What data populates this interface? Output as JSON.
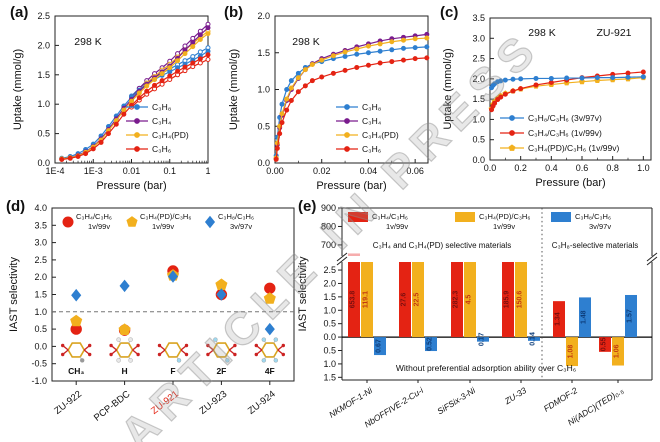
{
  "figure": {
    "watermark": "ARTICLE IN PRESS"
  },
  "colors": {
    "blue": "#2E7FD0",
    "purple": "#7A1C8E",
    "gold": "#F2B01E",
    "red": "#E42313",
    "pink": "#F6ADAD",
    "axis": "#222222",
    "highlight": "#E42313"
  },
  "panels": [
    {
      "tag": "(a)"
    },
    {
      "tag": "(b)"
    },
    {
      "tag": "(c)"
    },
    {
      "tag": "(d)"
    },
    {
      "tag": "(e)"
    }
  ],
  "chart_data": [
    {
      "id": "a",
      "type": "line",
      "xscale": "log",
      "title": "",
      "xlabel": "Pressure (bar)",
      "ylabel": "Uptake (mmol/g)",
      "xlim": [
        0.0001,
        1
      ],
      "ylim": [
        0,
        2.5
      ],
      "xticks": [
        {
          "v": 0.0001,
          "l": "1E-4"
        },
        {
          "v": 0.001,
          "l": "1E-3"
        },
        {
          "v": 0.01,
          "l": "0.01"
        },
        {
          "v": 0.1,
          "l": "0.1"
        },
        {
          "v": 1,
          "l": "1"
        }
      ],
      "yticks": [
        0,
        0.5,
        1,
        1.5,
        2,
        2.5
      ],
      "ydec": 1,
      "annotations": [
        "298 K"
      ],
      "series": [
        {
          "name": "C₃H₈ des",
          "legend": false,
          "color": "blue",
          "marker": "circle",
          "open": true,
          "x": [
            0.01,
            0.016,
            0.025,
            0.04,
            0.063,
            0.1,
            0.16,
            0.25,
            0.4,
            0.63,
            1.0
          ],
          "y": [
            1.14,
            1.27,
            1.37,
            1.46,
            1.53,
            1.6,
            1.67,
            1.74,
            1.81,
            1.89,
            1.96
          ]
        },
        {
          "name": "C₃H₄ des",
          "legend": false,
          "color": "purple",
          "marker": "circle",
          "open": true,
          "x": [
            0.01,
            0.016,
            0.025,
            0.04,
            0.063,
            0.1,
            0.16,
            0.25,
            0.4,
            0.63,
            1.0
          ],
          "y": [
            1.12,
            1.27,
            1.4,
            1.52,
            1.62,
            1.73,
            1.86,
            1.99,
            2.12,
            2.24,
            2.36
          ]
        },
        {
          "name": "C₃H₄(PD) des",
          "legend": false,
          "color": "gold",
          "marker": "circle",
          "open": true,
          "x": [
            0.01,
            0.016,
            0.025,
            0.04,
            0.063,
            0.1,
            0.16,
            0.25,
            0.4,
            0.63,
            1.0
          ],
          "y": [
            1.08,
            1.23,
            1.36,
            1.47,
            1.58,
            1.68,
            1.8,
            1.92,
            2.03,
            2.14,
            2.24
          ]
        },
        {
          "name": "C₃H₆ des",
          "legend": false,
          "color": "red",
          "marker": "circle",
          "open": true,
          "x": [
            0.01,
            0.016,
            0.025,
            0.04,
            0.063,
            0.1,
            0.16,
            0.25,
            0.4,
            0.63,
            1.0
          ],
          "y": [
            0.95,
            1.07,
            1.17,
            1.26,
            1.34,
            1.42,
            1.5,
            1.57,
            1.64,
            1.7,
            1.76
          ]
        },
        {
          "name": "C₃H₈",
          "color": "blue",
          "marker": "circle",
          "open": false,
          "x": [
            0.00015,
            0.00025,
            0.0004,
            0.00063,
            0.001,
            0.0016,
            0.0025,
            0.004,
            0.0063,
            0.01,
            0.016,
            0.025,
            0.04,
            0.063,
            0.1,
            0.16,
            0.25,
            0.4,
            0.63,
            1.0
          ],
          "y": [
            0.08,
            0.11,
            0.16,
            0.23,
            0.32,
            0.46,
            0.62,
            0.8,
            0.97,
            1.12,
            1.24,
            1.34,
            1.42,
            1.49,
            1.55,
            1.62,
            1.68,
            1.75,
            1.82,
            1.9
          ]
        },
        {
          "name": "C₃H₄",
          "color": "purple",
          "marker": "circle",
          "open": false,
          "x": [
            0.00015,
            0.00025,
            0.0004,
            0.00063,
            0.001,
            0.0016,
            0.0025,
            0.004,
            0.0063,
            0.01,
            0.016,
            0.025,
            0.04,
            0.063,
            0.1,
            0.16,
            0.25,
            0.4,
            0.63,
            1.0
          ],
          "y": [
            0.07,
            0.09,
            0.13,
            0.19,
            0.28,
            0.41,
            0.57,
            0.75,
            0.93,
            1.08,
            1.22,
            1.34,
            1.45,
            1.55,
            1.65,
            1.78,
            1.92,
            2.05,
            2.18,
            2.3
          ]
        },
        {
          "name": "C₃H₄(PD)",
          "color": "gold",
          "marker": "circle",
          "open": false,
          "x": [
            0.00015,
            0.00025,
            0.0004,
            0.00063,
            0.001,
            0.0016,
            0.0025,
            0.004,
            0.0063,
            0.01,
            0.016,
            0.025,
            0.04,
            0.063,
            0.1,
            0.16,
            0.25,
            0.4,
            0.63,
            1.0
          ],
          "y": [
            0.07,
            0.09,
            0.12,
            0.18,
            0.27,
            0.39,
            0.55,
            0.72,
            0.9,
            1.05,
            1.19,
            1.31,
            1.42,
            1.52,
            1.62,
            1.74,
            1.86,
            1.98,
            2.1,
            2.2
          ]
        },
        {
          "name": "C₃H₆",
          "color": "red",
          "marker": "circle",
          "open": false,
          "x": [
            0.00015,
            0.00025,
            0.0004,
            0.00063,
            0.001,
            0.0016,
            0.0025,
            0.004,
            0.0063,
            0.01,
            0.016,
            0.025,
            0.04,
            0.063,
            0.1,
            0.16,
            0.25,
            0.4,
            0.63,
            1.0
          ],
          "y": [
            0.06,
            0.08,
            0.11,
            0.16,
            0.24,
            0.35,
            0.5,
            0.66,
            0.83,
            0.98,
            1.11,
            1.22,
            1.32,
            1.4,
            1.48,
            1.56,
            1.63,
            1.7,
            1.77,
            1.84
          ]
        }
      ]
    },
    {
      "id": "b",
      "type": "line",
      "xscale": "linear",
      "xlabel": "Pressure (bar)",
      "ylabel": "Uptake (mmol/g)",
      "xlim": [
        0,
        0.0655
      ],
      "ylim": [
        0,
        2.0
      ],
      "xticks": [
        {
          "v": 0,
          "l": "0.00"
        },
        {
          "v": 0.02,
          "l": "0.02"
        },
        {
          "v": 0.04,
          "l": "0.04"
        },
        {
          "v": 0.06,
          "l": "0.06"
        }
      ],
      "xminor": [
        0.01,
        0.03,
        0.05
      ],
      "yticks": [
        0,
        0.5,
        1,
        1.5,
        2
      ],
      "ydec": 1,
      "annotations": [
        "298 K"
      ],
      "series": [
        {
          "name": "C₃H₈",
          "color": "blue",
          "marker": "circle",
          "open": false,
          "x": [
            0.0005,
            0.001,
            0.002,
            0.003,
            0.005,
            0.007,
            0.01,
            0.013,
            0.016,
            0.02,
            0.025,
            0.03,
            0.035,
            0.04,
            0.045,
            0.05,
            0.055,
            0.06,
            0.065
          ],
          "y": [
            0.1,
            0.35,
            0.62,
            0.8,
            1.0,
            1.12,
            1.22,
            1.3,
            1.35,
            1.38,
            1.42,
            1.45,
            1.48,
            1.5,
            1.52,
            1.54,
            1.56,
            1.57,
            1.58
          ]
        },
        {
          "name": "C₃H₄",
          "color": "purple",
          "marker": "circle",
          "open": false,
          "x": [
            0.0005,
            0.001,
            0.002,
            0.003,
            0.005,
            0.007,
            0.01,
            0.013,
            0.016,
            0.02,
            0.025,
            0.03,
            0.035,
            0.04,
            0.045,
            0.05,
            0.055,
            0.06,
            0.065
          ],
          "y": [
            0.06,
            0.25,
            0.48,
            0.65,
            0.85,
            1.0,
            1.15,
            1.27,
            1.35,
            1.42,
            1.48,
            1.53,
            1.58,
            1.62,
            1.66,
            1.69,
            1.71,
            1.73,
            1.75
          ]
        },
        {
          "name": "C₃H₄(PD)",
          "color": "gold",
          "marker": "circle",
          "open": false,
          "x": [
            0.0005,
            0.001,
            0.002,
            0.003,
            0.005,
            0.007,
            0.01,
            0.013,
            0.016,
            0.02,
            0.025,
            0.03,
            0.035,
            0.04,
            0.045,
            0.05,
            0.055,
            0.06,
            0.065
          ],
          "y": [
            0.07,
            0.27,
            0.5,
            0.67,
            0.87,
            1.02,
            1.16,
            1.27,
            1.34,
            1.4,
            1.46,
            1.51,
            1.55,
            1.59,
            1.62,
            1.65,
            1.67,
            1.69,
            1.7
          ]
        },
        {
          "name": "C₃H₆",
          "color": "red",
          "marker": "circle",
          "open": false,
          "x": [
            0.0005,
            0.001,
            0.002,
            0.003,
            0.005,
            0.007,
            0.01,
            0.013,
            0.016,
            0.02,
            0.025,
            0.03,
            0.035,
            0.04,
            0.045,
            0.05,
            0.055,
            0.06,
            0.065
          ],
          "y": [
            0.05,
            0.2,
            0.4,
            0.55,
            0.72,
            0.85,
            0.97,
            1.05,
            1.12,
            1.17,
            1.22,
            1.26,
            1.3,
            1.33,
            1.36,
            1.38,
            1.4,
            1.42,
            1.43
          ]
        }
      ]
    },
    {
      "id": "c",
      "type": "line",
      "xscale": "linear",
      "xlabel": "Pressure (bar)",
      "ylabel": "Uptake (mmol/g)",
      "xlim": [
        0,
        1.05
      ],
      "ylim": [
        0,
        3.5
      ],
      "xticks": [
        {
          "v": 0,
          "l": "0.0"
        },
        {
          "v": 0.2,
          "l": "0.2"
        },
        {
          "v": 0.4,
          "l": "0.4"
        },
        {
          "v": 0.6,
          "l": "0.6"
        },
        {
          "v": 0.8,
          "l": "0.8"
        },
        {
          "v": 1.0,
          "l": "1.0"
        }
      ],
      "xminor": [
        0.1,
        0.3,
        0.5,
        0.7,
        0.9
      ],
      "yticks": [
        0,
        0.5,
        1,
        1.5,
        2,
        2.5,
        3,
        3.5
      ],
      "ydec": 1,
      "annotations": [
        "298 K",
        "ZU-921"
      ],
      "series": [
        {
          "name": "C₃H₄(PD)/C₃H₆ (1v/99v)",
          "color": "gold",
          "marker": "pentagon",
          "open": false,
          "x": [
            0.01,
            0.02,
            0.03,
            0.05,
            0.07,
            0.1,
            0.15,
            0.2,
            0.3,
            0.4,
            0.5,
            0.6,
            0.7,
            0.8,
            0.9,
            1.0
          ],
          "y": [
            1.26,
            1.37,
            1.44,
            1.52,
            1.58,
            1.64,
            1.7,
            1.75,
            1.82,
            1.86,
            1.9,
            1.93,
            1.96,
            1.98,
            2.0,
            2.03
          ]
        },
        {
          "name": "C₃H₄/C₃H₆ (1v/99v)",
          "color": "red",
          "marker": "circle",
          "open": false,
          "x": [
            0.01,
            0.02,
            0.03,
            0.05,
            0.07,
            0.1,
            0.15,
            0.2,
            0.3,
            0.4,
            0.5,
            0.6,
            0.7,
            0.8,
            0.9,
            1.0
          ],
          "y": [
            1.24,
            1.33,
            1.4,
            1.49,
            1.55,
            1.62,
            1.7,
            1.76,
            1.85,
            1.91,
            1.97,
            2.03,
            2.07,
            2.11,
            2.14,
            2.17
          ]
        },
        {
          "name": "C₃H₈/C₃H₆ (3v/97v)",
          "color": "blue",
          "marker": "circle",
          "open": false,
          "x": [
            0.01,
            0.02,
            0.03,
            0.05,
            0.07,
            0.1,
            0.15,
            0.2,
            0.3,
            0.4,
            0.5,
            0.6,
            0.7,
            0.8,
            0.9,
            1.0
          ],
          "y": [
            1.78,
            1.84,
            1.88,
            1.93,
            1.95,
            1.97,
            1.99,
            2.0,
            2.01,
            2.01,
            2.02,
            2.02,
            2.03,
            2.03,
            2.04,
            2.05
          ]
        }
      ],
      "legend_order": [
        2,
        1,
        0
      ]
    },
    {
      "id": "d",
      "type": "scatter",
      "ylabel": "IAST selectivity",
      "ylim": [
        -1.0,
        4.0
      ],
      "yticks": [
        -1,
        -0.5,
        0,
        0.5,
        1,
        1.5,
        2,
        2.5,
        3,
        3.5,
        4
      ],
      "ydec": 1,
      "refline": 1.0,
      "categories": [
        {
          "label": "ZU-922"
        },
        {
          "label": "PCP-BDC"
        },
        {
          "label": "ZU-921",
          "highlight": true
        },
        {
          "label": "ZU-923"
        },
        {
          "label": "ZU-924"
        }
      ],
      "mol_labels": [
        "CH₃",
        "H",
        "F",
        "2F",
        "4F"
      ],
      "series": [
        {
          "name": "C₃H₄/C₃H₆",
          "ratio": "1v/99v",
          "color": "red",
          "marker": "circle",
          "values": [
            0.5,
            0.47,
            2.18,
            1.5,
            1.68
          ]
        },
        {
          "name": "C₃H₄(PD)/C₃H₆",
          "ratio": "1v/99v",
          "color": "gold",
          "marker": "pentagon",
          "values": [
            0.73,
            0.48,
            2.05,
            1.78,
            1.38
          ]
        },
        {
          "name": "C₃H₈/C₃H₆",
          "ratio": "3v/97v",
          "color": "blue",
          "marker": "diamond",
          "values": [
            1.48,
            1.75,
            2.02,
            1.5,
            0.5
          ]
        }
      ]
    },
    {
      "id": "e",
      "type": "bar-broken",
      "ylabel": "IAST selectivity",
      "upper_ticks": [
        700,
        800,
        900
      ],
      "lower_ticks": [
        2.5,
        2.0,
        1.5,
        1.0,
        0.5,
        0.0,
        -0.5,
        -1.0,
        -1.5
      ],
      "upper_lim": [
        640,
        900
      ],
      "lower_lim": [
        -1.6,
        2.8
      ],
      "categories": [
        "NKMOF-1-Ni",
        "NbOFFIVE-2-Cu-i",
        "SiFSix-3-Ni",
        "ZU-33",
        "FDMOF-2",
        "Ni(ADC)(TED)₀.₅"
      ],
      "divider_after": 4,
      "series": [
        {
          "name": "C₃H₄/C₃H₆",
          "ratio": "1v/99v",
          "color": "red",
          "values": [
            653.8,
            27.6,
            282.3,
            185.9,
            1.34,
            -0.55
          ],
          "labels": [
            "653.8",
            "27.6",
            "282.3",
            "185.9",
            "1.34",
            "0.55"
          ]
        },
        {
          "name": "C₃H₄(PD)/C₃H₆",
          "ratio": "1v/99v",
          "color": "gold",
          "values": [
            119.1,
            22.5,
            4.5,
            150.6,
            -1.08,
            -1.06
          ],
          "labels": [
            "119.1",
            "22.5",
            "4.5",
            "150.6",
            "1.08",
            "1.06"
          ]
        },
        {
          "name": "C₃H₈/C₃H₆",
          "ratio": "3v/97v",
          "color": "blue",
          "values": [
            -0.67,
            -0.52,
            -0.17,
            -0.14,
            1.48,
            1.57
          ],
          "labels": [
            "0.67",
            "0.52",
            "0.17",
            "0.14",
            "1.48",
            "1.57"
          ]
        }
      ],
      "annotations": {
        "left": "C₃H₄ and C₃H₄(PD) selective materials",
        "right": "C₃H₈-selective materials",
        "bottom": "Without preferential adsorption ability over C₃H₆"
      }
    }
  ]
}
